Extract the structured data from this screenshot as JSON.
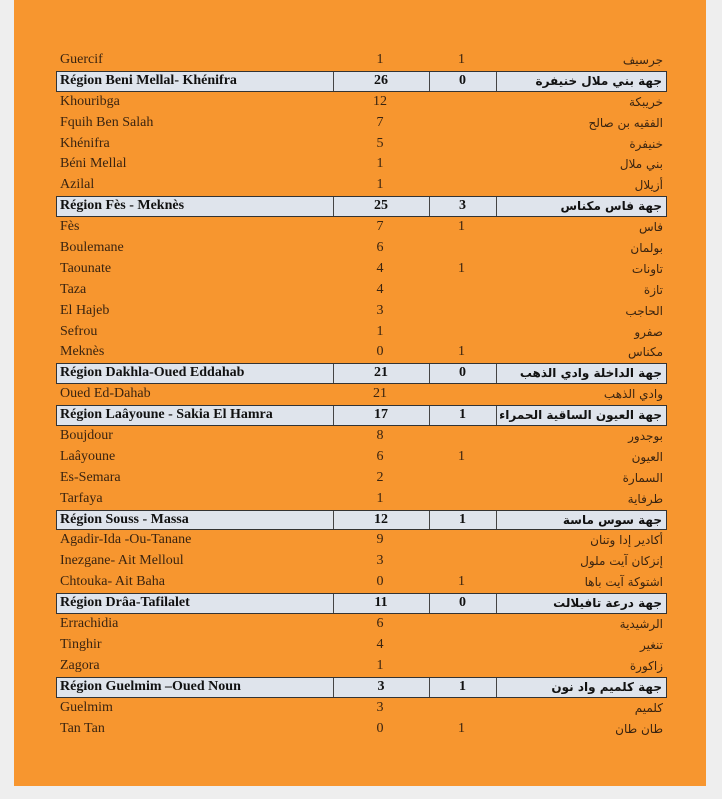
{
  "rows": [
    {
      "type": "city",
      "fr": "Guercif",
      "n1": "1",
      "n2": "1",
      "ar": "جرسيف"
    },
    {
      "type": "region",
      "fr": "Région Beni Mellal- Khénifra",
      "n1": "26",
      "n2": "0",
      "ar": "جهة بني ملال خنيفرة"
    },
    {
      "type": "city",
      "fr": "Khouribga",
      "n1": "12",
      "n2": "",
      "ar": "خريبكة"
    },
    {
      "type": "city",
      "fr": "Fquih Ben Salah",
      "n1": "7",
      "n2": "",
      "ar": "الفقيه بن صالح"
    },
    {
      "type": "city",
      "fr": "Khénifra",
      "n1": "5",
      "n2": "",
      "ar": "خنيفرة"
    },
    {
      "type": "city",
      "fr": "Béni Mellal",
      "n1": "1",
      "n2": "",
      "ar": "بني ملال"
    },
    {
      "type": "city",
      "fr": "Azilal",
      "n1": "1",
      "n2": "",
      "ar": "أزيلال"
    },
    {
      "type": "region",
      "fr": "Région Fès - Meknès",
      "n1": "25",
      "n2": "3",
      "ar": "جهة فاس مكناس"
    },
    {
      "type": "city",
      "fr": "Fès",
      "n1": "7",
      "n2": "1",
      "ar": "فاس"
    },
    {
      "type": "city",
      "fr": "Boulemane",
      "n1": "6",
      "n2": "",
      "ar": "بولمان"
    },
    {
      "type": "city",
      "fr": "Taounate",
      "n1": "4",
      "n2": "1",
      "ar": "تاونات"
    },
    {
      "type": "city",
      "fr": "Taza",
      "n1": "4",
      "n2": "",
      "ar": "تازة"
    },
    {
      "type": "city",
      "fr": "El  Hajeb",
      "n1": "3",
      "n2": "",
      "ar": "الحاجب"
    },
    {
      "type": "city",
      "fr": "Sefrou",
      "n1": "1",
      "n2": "",
      "ar": "صفرو"
    },
    {
      "type": "city",
      "fr": "Meknès",
      "n1": "0",
      "n2": "1",
      "ar": "مكناس"
    },
    {
      "type": "region",
      "fr": "Région Dakhla-Oued Eddahab",
      "n1": "21",
      "n2": "0",
      "ar": "جهة الداخلة وادي الذهب"
    },
    {
      "type": "city",
      "fr": "Oued Ed-Dahab",
      "n1": "21",
      "n2": "",
      "ar": "وادي الذهب"
    },
    {
      "type": "region",
      "fr": "Région Laâyoune - Sakia El Hamra",
      "n1": "17",
      "n2": "1",
      "ar": "جهة العيون الساقية الحمراء"
    },
    {
      "type": "city",
      "fr": "Boujdour",
      "n1": "8",
      "n2": "",
      "ar": "بوجدور"
    },
    {
      "type": "city",
      "fr": "Laâyoune",
      "n1": "6",
      "n2": "1",
      "ar": "العيون"
    },
    {
      "type": "city",
      "fr": "Es-Semara",
      "n1": "2",
      "n2": "",
      "ar": "السمارة"
    },
    {
      "type": "city",
      "fr": "Tarfaya",
      "n1": "1",
      "n2": "",
      "ar": "طرفاية"
    },
    {
      "type": "region",
      "fr": "Région Souss - Massa",
      "n1": "12",
      "n2": "1",
      "ar": "جهة سوس ماسة"
    },
    {
      "type": "city",
      "fr": "Agadir-Ida -Ou-Tanane",
      "n1": "9",
      "n2": "",
      "ar": "أكادير إدا وتنان"
    },
    {
      "type": "city",
      "fr": "Inezgane- Ait Melloul",
      "n1": "3",
      "n2": "",
      "ar": "إنزكان آيت ملول"
    },
    {
      "type": "city",
      "fr": "Chtouka- Ait Baha",
      "n1": "0",
      "n2": "1",
      "ar": "اشتوكة آيت باها"
    },
    {
      "type": "region",
      "fr": "Région Drâa-Tafilalet",
      "n1": "11",
      "n2": "0",
      "ar": "جهة درعة تافيلالت"
    },
    {
      "type": "city",
      "fr": "Errachidia",
      "n1": "6",
      "n2": "",
      "ar": "الرشيدية"
    },
    {
      "type": "city",
      "fr": "Tinghir",
      "n1": "4",
      "n2": "",
      "ar": "تنغير"
    },
    {
      "type": "city",
      "fr": "Zagora",
      "n1": "1",
      "n2": "",
      "ar": "زاكورة"
    },
    {
      "type": "region",
      "fr": "Région Guelmim –Oued Noun",
      "n1": "3",
      "n2": "1",
      "ar": "جهة كلميم واد نون"
    },
    {
      "type": "city",
      "fr": "Guelmim",
      "n1": "3",
      "n2": "",
      "ar": "كلميم"
    },
    {
      "type": "city",
      "fr": "Tan Tan",
      "n1": "0",
      "n2": "1",
      "ar": "طان طان"
    }
  ],
  "colors": {
    "page": "#f7962f",
    "region_fill": "#dfe4ec",
    "text": "#3a2410"
  }
}
